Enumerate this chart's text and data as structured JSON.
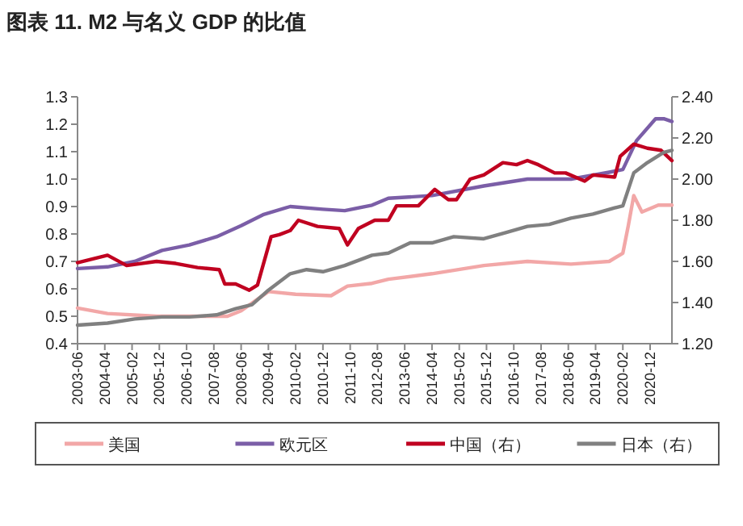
{
  "chart_data": {
    "type": "line",
    "title": "图表 11. M2 与名义 GDP 的比值",
    "xlim": [
      "2003-06",
      "2021-08"
    ],
    "xticks": [
      "2003-06",
      "2004-04",
      "2005-02",
      "2005-12",
      "2006-10",
      "2007-08",
      "2008-06",
      "2009-04",
      "2010-02",
      "2010-12",
      "2011-10",
      "2012-08",
      "2013-06",
      "2014-04",
      "2015-02",
      "2015-12",
      "2016-10",
      "2017-08",
      "2018-06",
      "2019-04",
      "2020-02",
      "2020-12"
    ],
    "ylim": [
      0.4,
      1.3
    ],
    "yticks": [
      {
        "value": 0.4,
        "label": "0.4"
      },
      {
        "value": 0.5,
        "label": "0.5"
      },
      {
        "value": 0.6,
        "label": "0.6"
      },
      {
        "value": 0.7,
        "label": "0.7"
      },
      {
        "value": 0.8,
        "label": "0.8"
      },
      {
        "value": 0.9,
        "label": "0.9"
      },
      {
        "value": 1.0,
        "label": "1.0"
      },
      {
        "value": 1.1,
        "label": "1.1"
      },
      {
        "value": 1.2,
        "label": "1.2"
      },
      {
        "value": 1.3,
        "label": "1.3"
      }
    ],
    "y2lim": [
      1.2,
      2.4
    ],
    "y2ticks": [
      {
        "value": 1.2,
        "label": "1.20"
      },
      {
        "value": 1.4,
        "label": "1.40"
      },
      {
        "value": 1.6,
        "label": "1.60"
      },
      {
        "value": 1.8,
        "label": "1.80"
      },
      {
        "value": 2.0,
        "label": "2.00"
      },
      {
        "value": 2.2,
        "label": "2.20"
      },
      {
        "value": 2.4,
        "label": "2.40"
      }
    ],
    "grid": false,
    "legend": "bottom",
    "marker": "none",
    "line_style": "solid",
    "series": [
      {
        "name": "美国",
        "color": "#f2a7a7",
        "x": [
          "2003-06",
          "2004-05",
          "2005-11",
          "2008-01",
          "2008-06",
          "2009-04",
          "2010-02",
          "2011-03",
          "2011-09",
          "2012-06",
          "2012-12",
          "2014-04",
          "2015-11",
          "2017-03",
          "2018-07",
          "2019-09",
          "2020-02",
          "2020-04",
          "2020-06",
          "2020-09",
          "2021-03",
          "2021-08"
        ],
        "values": [
          0.53,
          0.51,
          0.5,
          0.5,
          0.52,
          0.59,
          0.58,
          0.575,
          0.61,
          0.62,
          0.635,
          0.655,
          0.685,
          0.7,
          0.69,
          0.7,
          0.73,
          0.83,
          0.94,
          0.88,
          0.905,
          0.905
        ]
      },
      {
        "name": "欧元区",
        "color": "#7b5ea7",
        "x": [
          "2003-06",
          "2004-05",
          "2005-03",
          "2006-01",
          "2006-11",
          "2007-09",
          "2008-06",
          "2009-02",
          "2009-12",
          "2010-12",
          "2011-08",
          "2012-06",
          "2012-12",
          "2014-04",
          "2015-11",
          "2017-03",
          "2018-07",
          "2019-09",
          "2020-02",
          "2020-07",
          "2021-02",
          "2021-05",
          "2021-08"
        ],
        "values": [
          0.674,
          0.68,
          0.7,
          0.74,
          0.76,
          0.79,
          0.83,
          0.87,
          0.9,
          0.89,
          0.885,
          0.905,
          0.93,
          0.94,
          0.975,
          1.0,
          1.0,
          1.025,
          1.035,
          1.14,
          1.22,
          1.22,
          1.21
        ]
      },
      {
        "name": "中国（右）",
        "axis": "y2",
        "color": "#c00020",
        "x": [
          "2003-06",
          "2004-05",
          "2004-12",
          "2005-11",
          "2006-06",
          "2007-02",
          "2007-10",
          "2007-12",
          "2008-04",
          "2008-09",
          "2008-12",
          "2009-05",
          "2009-08",
          "2009-12",
          "2010-03",
          "2010-10",
          "2011-06",
          "2011-09",
          "2012-01",
          "2012-07",
          "2012-12",
          "2013-03",
          "2013-11",
          "2014-05",
          "2014-10",
          "2015-01",
          "2015-06",
          "2015-11",
          "2016-06",
          "2016-11",
          "2017-03",
          "2017-07",
          "2018-01",
          "2018-05",
          "2018-12",
          "2019-03",
          "2019-11",
          "2020-01",
          "2020-06",
          "2020-11",
          "2021-04",
          "2021-08"
        ],
        "values": [
          1.594,
          1.63,
          1.58,
          1.6,
          1.59,
          1.57,
          1.56,
          1.49,
          1.49,
          1.46,
          1.485,
          1.72,
          1.73,
          1.75,
          1.8,
          1.77,
          1.76,
          1.68,
          1.76,
          1.8,
          1.8,
          1.87,
          1.87,
          1.95,
          1.9,
          1.9,
          2.0,
          2.02,
          2.08,
          2.07,
          2.09,
          2.07,
          2.03,
          2.03,
          1.99,
          2.02,
          2.01,
          2.11,
          2.17,
          2.15,
          2.14,
          2.09
        ]
      },
      {
        "name": "日本（右）",
        "axis": "y2",
        "color": "#808080",
        "x": [
          "2003-06",
          "2004-05",
          "2005-03",
          "2006-01",
          "2006-11",
          "2007-09",
          "2008-04",
          "2008-10",
          "2009-04",
          "2009-12",
          "2010-06",
          "2010-12",
          "2011-08",
          "2012-06",
          "2012-12",
          "2013-08",
          "2014-04",
          "2014-12",
          "2015-11",
          "2016-07",
          "2017-03",
          "2017-11",
          "2018-07",
          "2019-03",
          "2019-11",
          "2020-02",
          "2020-06",
          "2020-11",
          "2021-05",
          "2021-08"
        ],
        "values": [
          1.29,
          1.3,
          1.32,
          1.33,
          1.33,
          1.34,
          1.37,
          1.39,
          1.46,
          1.54,
          1.56,
          1.55,
          1.58,
          1.63,
          1.64,
          1.69,
          1.69,
          1.72,
          1.71,
          1.74,
          1.77,
          1.78,
          1.81,
          1.83,
          1.86,
          1.87,
          2.03,
          2.08,
          2.13,
          2.14
        ]
      }
    ]
  }
}
